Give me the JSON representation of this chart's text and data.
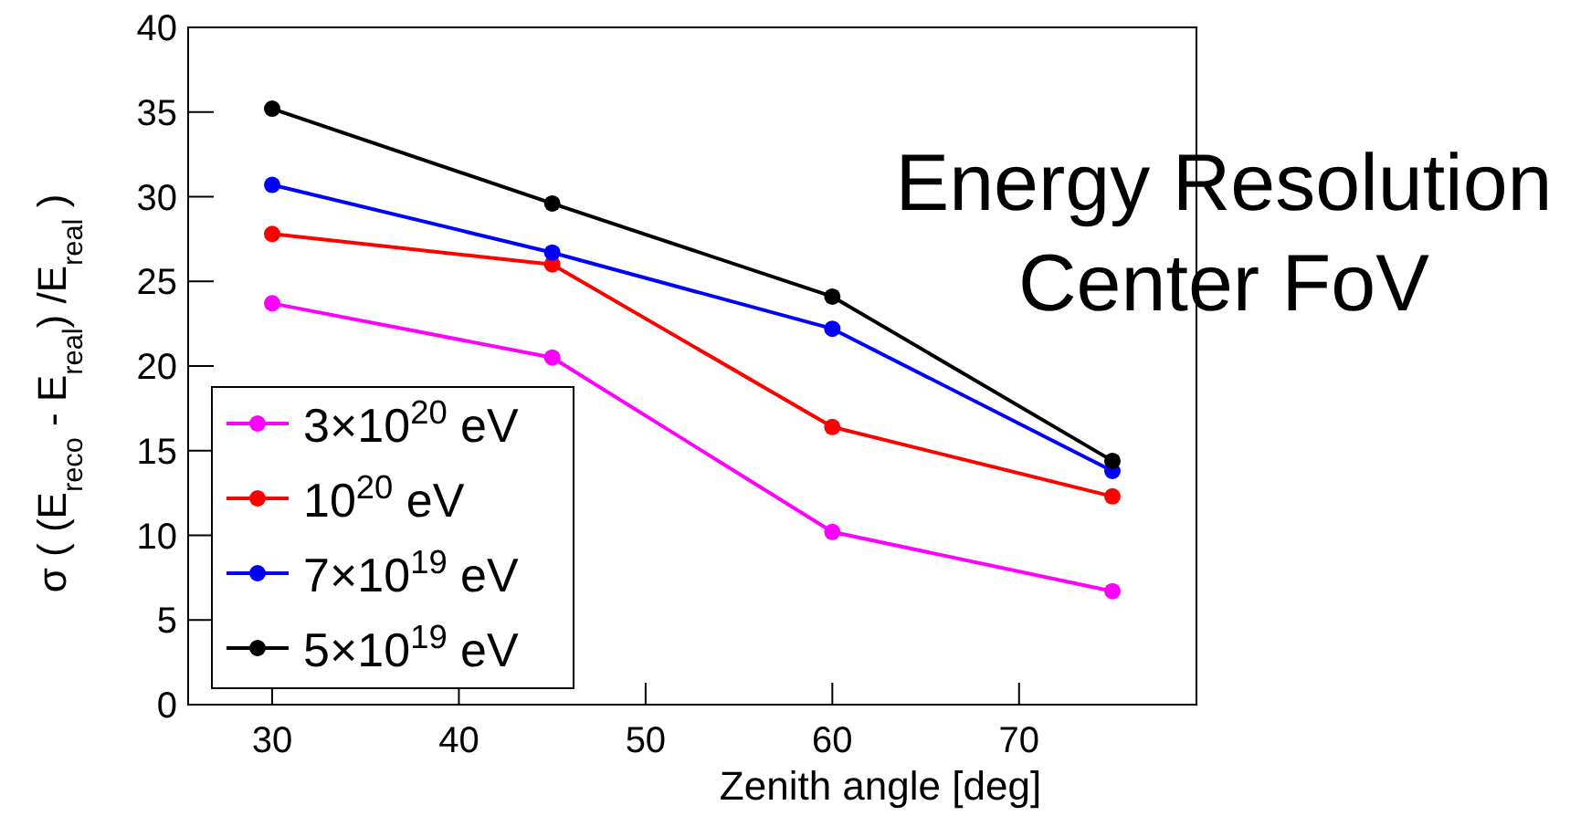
{
  "chart_data": {
    "type": "line",
    "title": "Energy Resolution",
    "subtitle": "Center FoV",
    "xlabel": "Zenith angle [deg]",
    "ylabel": "σ ( (E$_{reco}$ - E$_{real}$) /E$_{real}$ )",
    "x": [
      30,
      45,
      60,
      75
    ],
    "series": [
      {
        "name": "3×10$^{20}$ eV",
        "color": "#ff00ff",
        "values": [
          23.7,
          20.5,
          10.2,
          6.7
        ]
      },
      {
        "name": "10$^{20}$ eV",
        "color": "#ff0000",
        "values": [
          27.8,
          26.0,
          16.4,
          12.3
        ]
      },
      {
        "name": "7×10$^{19}$ eV",
        "color": "#0000ff",
        "values": [
          30.7,
          26.7,
          22.2,
          13.8
        ]
      },
      {
        "name": "5×10$^{19}$ eV",
        "color": "#000000",
        "values": [
          35.2,
          29.6,
          24.1,
          14.4
        ]
      }
    ],
    "xlim": [
      25.5,
      79.5
    ],
    "xticks": [
      30,
      40,
      50,
      60,
      70
    ],
    "ylim": [
      0,
      40
    ],
    "yticks": [
      0,
      5,
      10,
      15,
      20,
      25,
      30,
      35,
      40
    ],
    "legend": "bottom left",
    "marker": "circle",
    "line_style": "solid",
    "grid": false
  }
}
